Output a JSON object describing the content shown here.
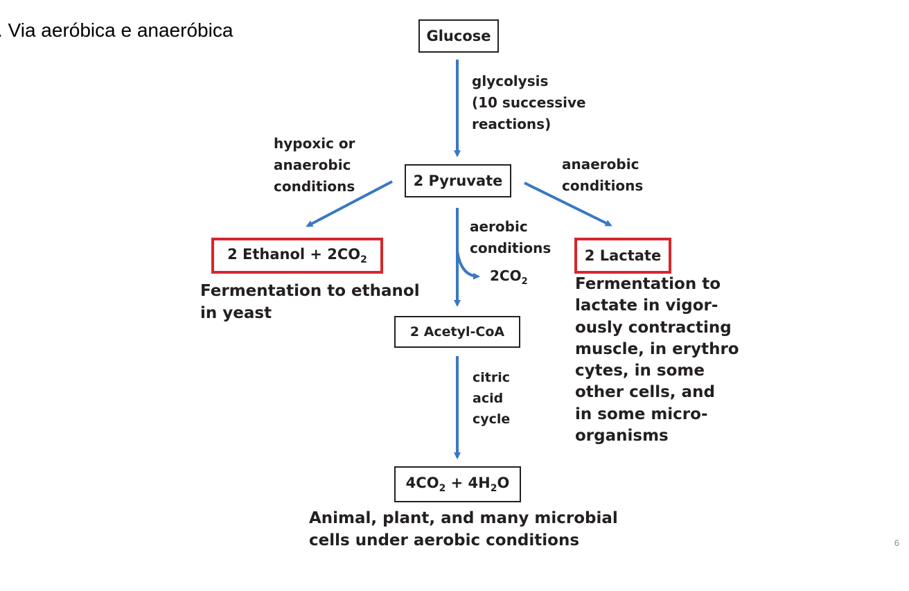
{
  "slide": {
    "title": ". Via aeróbica e anaeróbica",
    "page_number": "6"
  },
  "nodes": {
    "glucose": "Glucose",
    "pyruvate": "2 Pyruvate",
    "ethanol_pre": "2 Ethanol + 2CO",
    "ethanol_sub": "2",
    "lactate": "2 Lactate",
    "acetyl": "2 Acetyl-CoA",
    "final_pre": "4CO",
    "final_sub1": "2",
    "final_mid": " + 4H",
    "final_sub2": "2",
    "final_post": "O"
  },
  "edges": {
    "glycolysis": [
      "glycolysis",
      "(10 successive",
      "reactions)"
    ],
    "hypoxic": [
      "hypoxic or",
      "anaerobic",
      "conditions"
    ],
    "anaerobic_right": [
      "anaerobic",
      "conditions"
    ],
    "aerobic": [
      "aerobic",
      "conditions"
    ],
    "co2_pre": "2CO",
    "co2_sub": "2",
    "citric": [
      "citric",
      "acid",
      "cycle"
    ]
  },
  "captions": {
    "ethanol": [
      "Fermentation to ethanol",
      "in yeast"
    ],
    "lactate": [
      "Fermentation to",
      "lactate in vigor-",
      "ously contracting",
      "muscle, in erythro",
      "cytes, in some",
      "other cells, and",
      "in some micro-",
      "organisms"
    ],
    "aerobic": [
      "Animal, plant, and many microbial",
      "cells under aerobic conditions"
    ]
  },
  "colors": {
    "arrow": "#3a78c2",
    "highlight": "#d7262b",
    "text": "#231f20"
  }
}
